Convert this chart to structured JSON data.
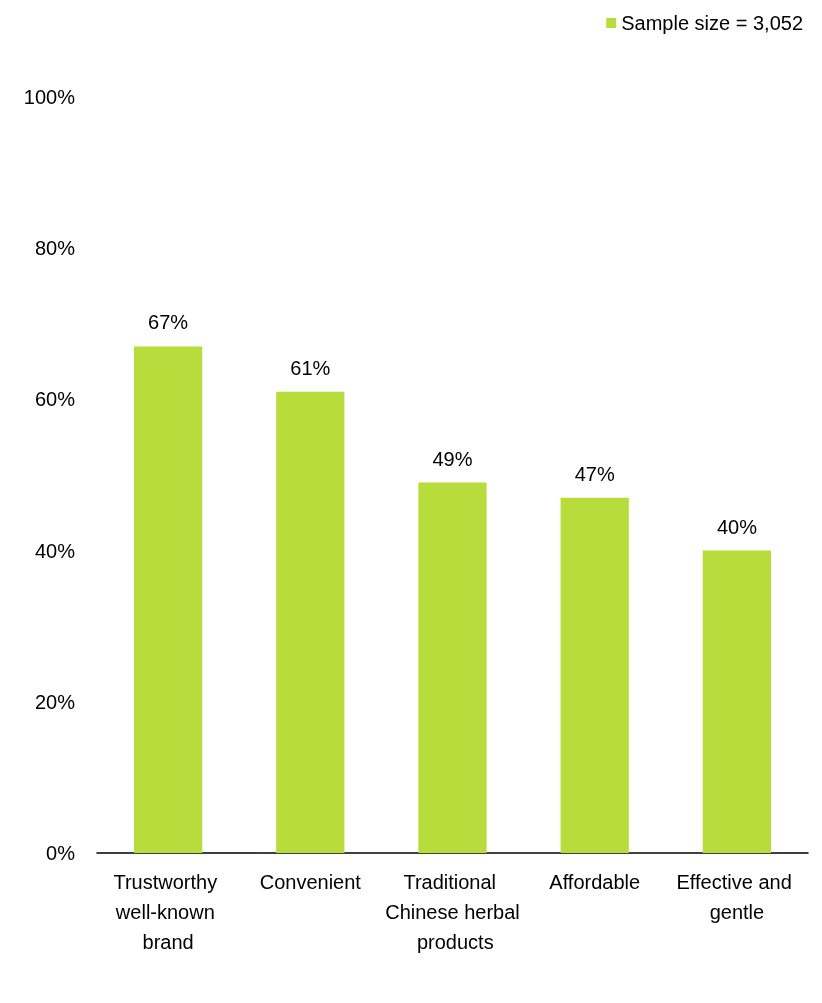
{
  "chart_data": {
    "type": "bar",
    "categories": [
      "Trustworthy well-known brand",
      "Convenient",
      "Traditional Chinese herbal products",
      "Affordable",
      "Effective and gentle"
    ],
    "series": [
      {
        "name": "Sample size = 3,052",
        "color": "#b8dc3c",
        "values": [
          67,
          61,
          49,
          47,
          40
        ],
        "value_labels": [
          "67%",
          "61%",
          "49%",
          "47%",
          "40%"
        ]
      }
    ],
    "ylim": [
      0,
      100
    ],
    "yticks": [
      {
        "value": 0,
        "label": "0%"
      },
      {
        "value": 20,
        "label": "20%"
      },
      {
        "value": 40,
        "label": "40%"
      },
      {
        "value": 60,
        "label": "60%"
      },
      {
        "value": 80,
        "label": "80%"
      },
      {
        "value": 100,
        "label": "100%"
      }
    ],
    "grid": false,
    "legend": "top right"
  }
}
